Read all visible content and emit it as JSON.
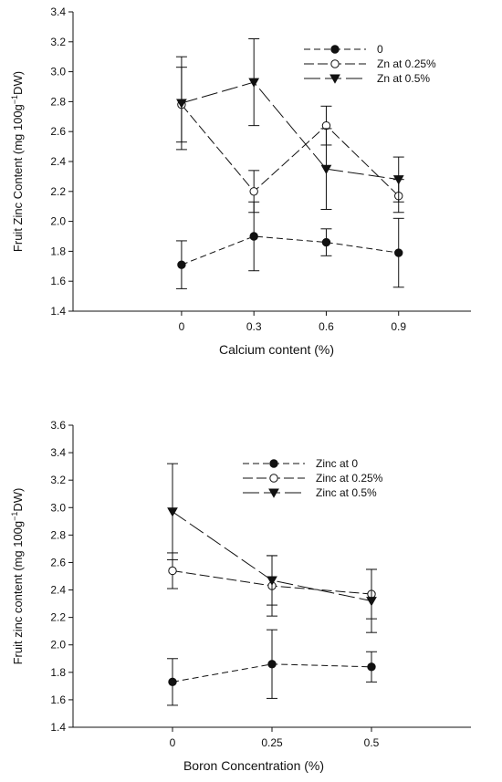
{
  "chart_data": [
    {
      "type": "line",
      "xlabel": "Calcium content (%)",
      "ylabel_main": "Fruit Zinc Content (mg 100g",
      "ylabel_sup": "−1",
      "ylabel_tail": "DW)",
      "x": [
        "0",
        "0.3",
        "0.6",
        "0.9"
      ],
      "xlim": [
        -0.45,
        1.2
      ],
      "ylim": [
        1.4,
        3.4
      ],
      "yticks": [
        "1.4",
        "1.6",
        "1.8",
        "2.0",
        "2.2",
        "2.4",
        "2.6",
        "2.8",
        "3.0",
        "3.2",
        "3.4"
      ],
      "legend_position": "top-right",
      "series": [
        {
          "name": "0",
          "marker": "filled-circle",
          "dash": "short",
          "values": [
            1.71,
            1.9,
            1.86,
            1.79
          ],
          "err": [
            0.16,
            0.23,
            0.09,
            0.23
          ]
        },
        {
          "name": "Zn at 0.25%",
          "marker": "open-circle",
          "dash": "medium",
          "values": [
            2.78,
            2.2,
            2.64,
            2.17
          ],
          "err": [
            0.25,
            0.14,
            0.13,
            0.11
          ]
        },
        {
          "name": "Zn at 0.5%",
          "marker": "filled-triangle-down",
          "dash": "long",
          "values": [
            2.79,
            2.93,
            2.35,
            2.28
          ],
          "err": [
            0.31,
            0.29,
            0.27,
            0.15
          ]
        }
      ]
    },
    {
      "type": "line",
      "xlabel": "Boron Concentration (%)",
      "ylabel_main": "Fruit zinc content (mg 100g",
      "ylabel_sup": "−1",
      "ylabel_tail": "DW)",
      "x": [
        "0",
        "0.25",
        "0.5"
      ],
      "xlim": [
        -0.25,
        0.75
      ],
      "ylim": [
        1.4,
        3.6
      ],
      "yticks": [
        "1.4",
        "1.6",
        "1.8",
        "2.0",
        "2.2",
        "2.4",
        "2.6",
        "2.8",
        "3.0",
        "3.2",
        "3.4",
        "3.6"
      ],
      "legend_position": "top-right",
      "series": [
        {
          "name": "Zinc at 0",
          "marker": "filled-circle",
          "dash": "short",
          "values": [
            1.73,
            1.86,
            1.84
          ],
          "err": [
            0.17,
            0.25,
            0.11
          ]
        },
        {
          "name": "Zinc at 0.25%",
          "marker": "open-circle",
          "dash": "medium",
          "values": [
            2.54,
            2.43,
            2.37
          ],
          "err": [
            0.13,
            0.22,
            0.18
          ]
        },
        {
          "name": "Zinc at 0.5%",
          "marker": "filled-triangle-down",
          "dash": "long",
          "values": [
            2.97,
            2.47,
            2.32
          ],
          "err": [
            0.35,
            0.18,
            0.23
          ]
        }
      ]
    }
  ]
}
